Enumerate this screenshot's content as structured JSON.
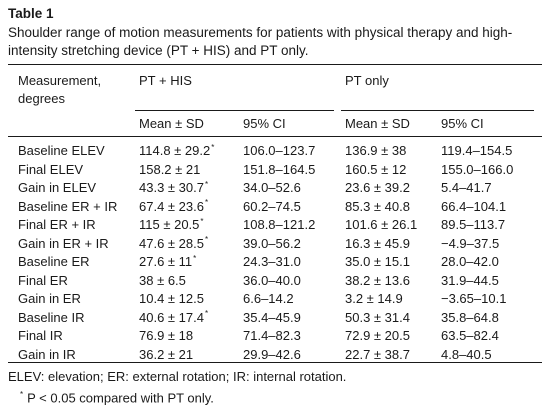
{
  "table": {
    "label": "Table 1",
    "caption": "Shoulder range of motion measurements for patients with physical therapy and high-intensity stretching device (PT + HIS) and PT only.",
    "headers": {
      "measurement_line1": "Measurement,",
      "measurement_line2": "degrees",
      "group1": "PT + HIS",
      "group2": "PT only",
      "mean_sd": "Mean ± SD",
      "ci": "95% CI"
    },
    "rows": [
      {
        "label": "Baseline ELEV",
        "pths_mean": "114.8 ± 29.2",
        "pths_star": "*",
        "pths_ci": "106.0–123.7",
        "pt_mean": "136.9 ± 38",
        "pt_ci": "119.4–154.5"
      },
      {
        "label": "Final ELEV",
        "pths_mean": "158.2 ± 21",
        "pths_star": "",
        "pths_ci": "151.8–164.5",
        "pt_mean": "160.5 ± 12",
        "pt_ci": "155.0–166.0"
      },
      {
        "label": "Gain in ELEV",
        "pths_mean": "43.3 ± 30.7",
        "pths_star": "*",
        "pths_ci": "34.0–52.6",
        "pt_mean": "23.6 ± 39.2",
        "pt_ci": "5.4–41.7"
      },
      {
        "label": "Baseline ER + IR",
        "pths_mean": "67.4 ± 23.6",
        "pths_star": "*",
        "pths_ci": "60.2–74.5",
        "pt_mean": "85.3 ± 40.8",
        "pt_ci": "66.4–104.1"
      },
      {
        "label": "Final ER + IR",
        "pths_mean": "115 ± 20.5",
        "pths_star": "*",
        "pths_ci": "108.8–121.2",
        "pt_mean": "101.6 ± 26.1",
        "pt_ci": "89.5–113.7"
      },
      {
        "label": "Gain in ER + IR",
        "pths_mean": "47.6 ± 28.5",
        "pths_star": "*",
        "pths_ci": "39.0–56.2",
        "pt_mean": "16.3 ± 45.9",
        "pt_ci": "−4.9–37.5"
      },
      {
        "label": "Baseline ER",
        "pths_mean": "27.6 ± 11",
        "pths_star": "*",
        "pths_ci": "24.3–31.0",
        "pt_mean": "35.0 ± 15.1",
        "pt_ci": "28.0–42.0"
      },
      {
        "label": "Final ER",
        "pths_mean": "38 ± 6.5",
        "pths_star": "",
        "pths_ci": "36.0–40.0",
        "pt_mean": "38.2 ± 13.6",
        "pt_ci": "31.9–44.5"
      },
      {
        "label": "Gain in ER",
        "pths_mean": "10.4 ± 12.5",
        "pths_star": "",
        "pths_ci": "6.6–14.2",
        "pt_mean": "3.2 ± 14.9",
        "pt_ci": "−3.65–10.1"
      },
      {
        "label": "Baseline IR",
        "pths_mean": "40.6 ± 17.4",
        "pths_star": "*",
        "pths_ci": "35.4–45.9",
        "pt_mean": "50.3 ± 31.4",
        "pt_ci": "35.8–64.8"
      },
      {
        "label": "Final IR",
        "pths_mean": "76.9 ± 18",
        "pths_star": "",
        "pths_ci": "71.4–82.3",
        "pt_mean": "72.9 ± 20.5",
        "pt_ci": "63.5–82.4"
      },
      {
        "label": "Gain in IR",
        "pths_mean": "36.2 ± 21",
        "pths_star": "",
        "pths_ci": "29.9–42.6",
        "pt_mean": "22.7 ± 38.7",
        "pt_ci": "4.8–40.5"
      }
    ],
    "footnotes": {
      "abbreviations": "ELEV: elevation; ER: external rotation; IR: internal rotation.",
      "star": "*",
      "significance": "P < 0.05 compared with PT only."
    }
  }
}
